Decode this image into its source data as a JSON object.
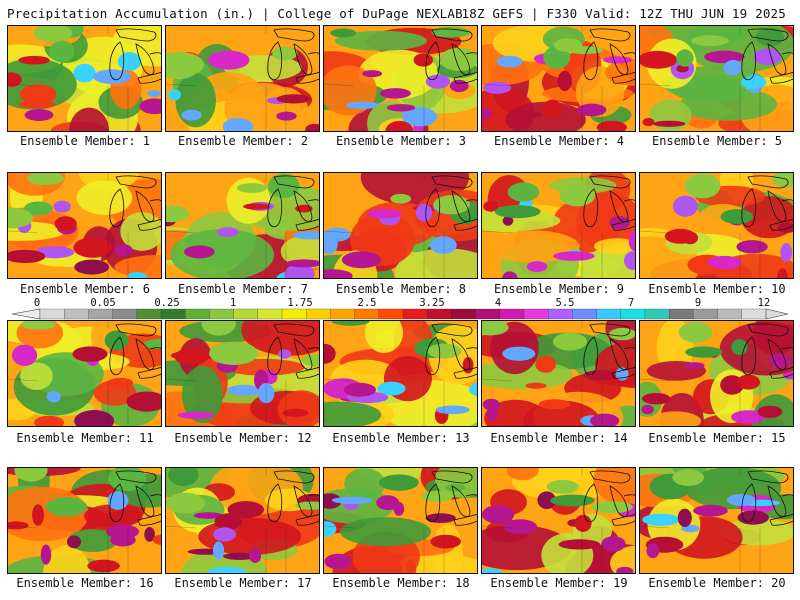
{
  "header": {
    "left": "Precipitation Accumulation (in.) | College of DuPage NEXLAB",
    "right": "18Z GEFS | F330 Valid: 12Z THU JUN 19 2025"
  },
  "members": [
    "Ensemble Member: 1",
    "Ensemble Member: 2",
    "Ensemble Member: 3",
    "Ensemble Member: 4",
    "Ensemble Member: 5",
    "Ensemble Member: 6",
    "Ensemble Member: 7",
    "Ensemble Member: 8",
    "Ensemble Member: 9",
    "Ensemble Member: 10",
    "Ensemble Member: 11",
    "Ensemble Member: 12",
    "Ensemble Member: 13",
    "Ensemble Member: 14",
    "Ensemble Member: 15",
    "Ensemble Member: 16",
    "Ensemble Member: 17",
    "Ensemble Member: 18",
    "Ensemble Member: 19",
    "Ensemble Member: 20"
  ],
  "colorbar": {
    "labels": [
      "0",
      "0.05",
      "0.25",
      "1",
      "1.75",
      "2.5",
      "3.25",
      "4",
      "5.5",
      "7",
      "9",
      "12"
    ],
    "colors": [
      "#d9d9d9",
      "#bfbfbf",
      "#a6a6a6",
      "#8c8c8c",
      "#4f8f36",
      "#2f7f2a",
      "#5fb03a",
      "#8cc63f",
      "#b5d93a",
      "#d6e82f",
      "#f2f000",
      "#ffd000",
      "#ffa500",
      "#ff7a00",
      "#ff4a00",
      "#e81c1c",
      "#c40f2a",
      "#9e0a3a",
      "#b0107a",
      "#d21ab0",
      "#e838e0",
      "#b060ff",
      "#6f8cff",
      "#37c8ff",
      "#17e0e0",
      "#2fc9b8",
      "#7a7a7a",
      "#9a9a9a",
      "#bbbbbb",
      "#dcdcdc"
    ]
  }
}
